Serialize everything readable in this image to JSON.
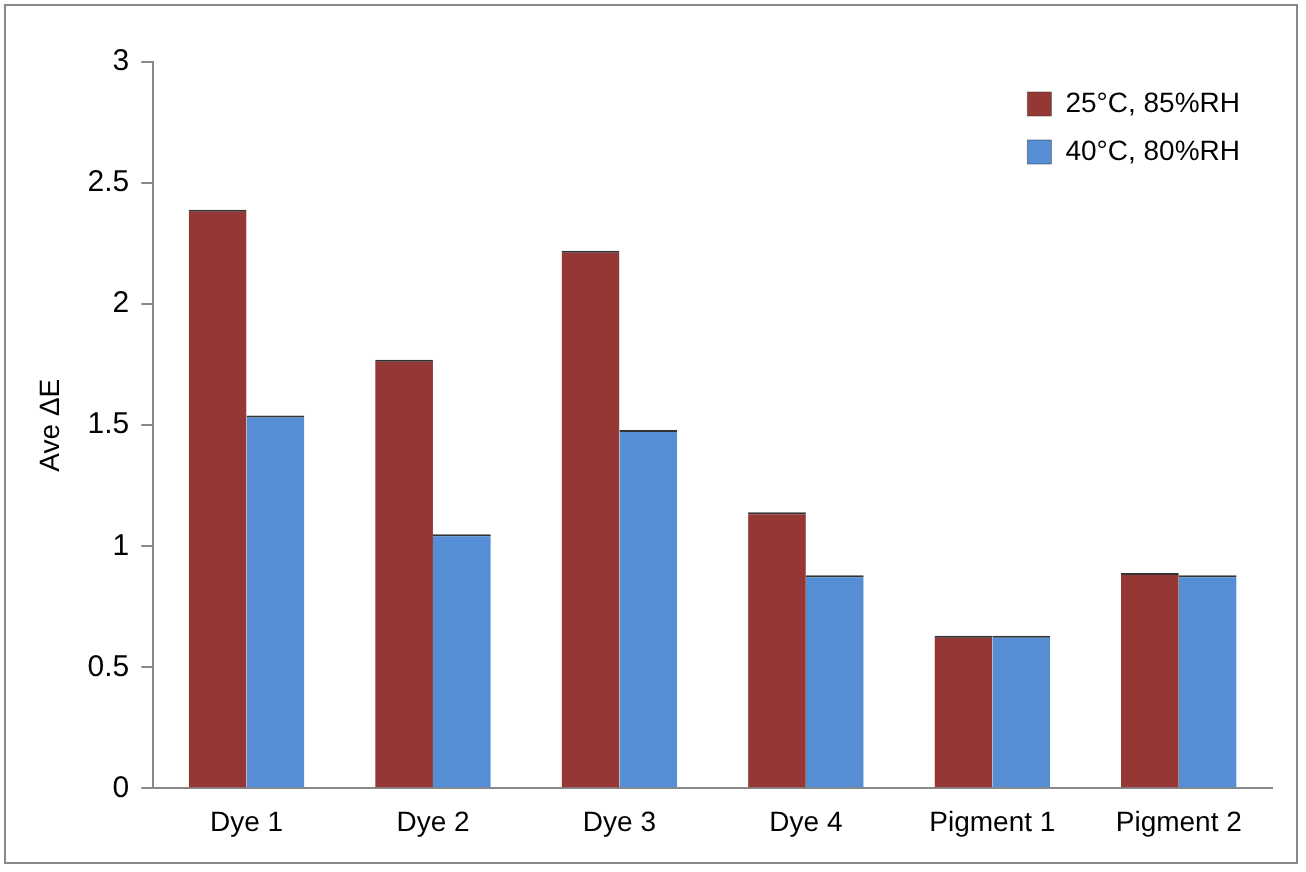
{
  "chart_data": {
    "type": "bar",
    "ylabel": "Ave ΔE",
    "categories": [
      "Dye 1",
      "Dye 2",
      "Dye 3",
      "Dye 4",
      "Pigment 1",
      "Pigment 2"
    ],
    "series": [
      {
        "name": "25°C, 85%RH",
        "color": "#953735",
        "values": [
          2.39,
          1.77,
          2.22,
          1.14,
          0.63,
          0.89
        ]
      },
      {
        "name": "40°C, 80%RH",
        "color": "#558ed5",
        "values": [
          1.54,
          1.05,
          1.48,
          0.88,
          0.63,
          0.88
        ]
      }
    ],
    "ylim": [
      0,
      3
    ],
    "yticks": [
      0,
      0.5,
      1,
      1.5,
      2,
      2.5,
      3
    ],
    "grid": false,
    "legend": "top right"
  }
}
